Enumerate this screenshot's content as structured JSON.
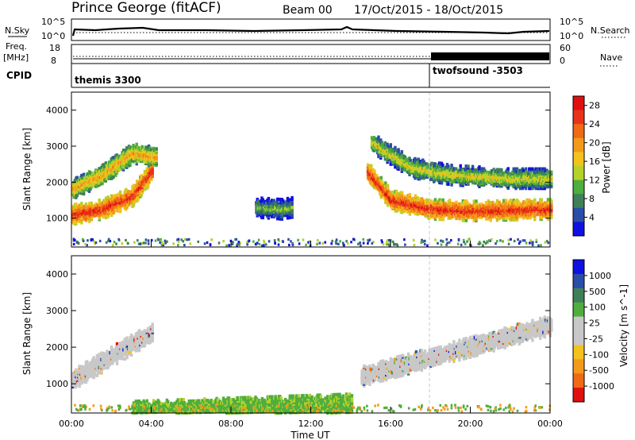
{
  "header": {
    "station": "Prince George (fitACF)",
    "beam": "Beam 00",
    "date_range": "17/Oct/2015 - 18/Oct/2015"
  },
  "top_panels": {
    "nsky_label": "N.Sky",
    "nsky_ticks": [
      "10^5",
      "10^0"
    ],
    "nsearch_label": "N.Search",
    "nsearch_ticks": [
      "10^5",
      "10^0"
    ],
    "freq_label": "Freq.",
    "freq_unit": "[MHz]",
    "freq_ticks": [
      "18",
      "8"
    ],
    "nave_label": "Nave",
    "nave_ticks": [
      "60",
      "0"
    ],
    "cpid_label": "CPID",
    "cpid_entries": [
      {
        "label": "themis 3300",
        "start_hour": 0
      },
      {
        "label": "twofsound -3503",
        "start_hour": 18
      }
    ]
  },
  "colors": {
    "power_scale": [
      "#1010e0",
      "#2a4ea8",
      "#3f7f5a",
      "#4fae3d",
      "#b6d12a",
      "#f2c31c",
      "#f39a1a",
      "#f06a16",
      "#e8331a",
      "#e01010"
    ],
    "velocity_scale": [
      "#e01010",
      "#f06a16",
      "#f39a1a",
      "#f2c31c",
      "#c8c8c8",
      "#c8c8c8",
      "#4fae3d",
      "#3f7f5a",
      "#2a4ea8",
      "#1010e0"
    ]
  },
  "chart_data": [
    {
      "type": "heatmap",
      "name": "Power",
      "xlabel": "",
      "ylabel": "Slant Range [km]",
      "xlim_hours": [
        0,
        24
      ],
      "ylim": [
        200,
        4500
      ],
      "yticks": [
        1000,
        2000,
        3000,
        4000
      ],
      "colorbar": {
        "label": "Power [dB]",
        "ticks": [
          4,
          8,
          12,
          16,
          20,
          24,
          28
        ],
        "range": [
          0,
          30
        ]
      },
      "features": [
        {
          "desc": "dense echo band",
          "x_hours": [
            0.0,
            1.5,
            3.0,
            4.0
          ],
          "range_km": [
            1100,
            1250,
            1600,
            2300
          ],
          "value_db": 28
        },
        {
          "desc": "upper echo band",
          "x_hours": [
            0.0,
            1.5,
            3.0,
            4.2
          ],
          "range_km": [
            1800,
            2200,
            2800,
            2700
          ],
          "value_db": 20
        },
        {
          "desc": "scattered echoes",
          "x_hours": [
            9.2,
            10.5,
            11.0
          ],
          "range_km": [
            1300,
            1250,
            1300
          ],
          "value_db": 12
        },
        {
          "desc": "dense echo band",
          "x_hours": [
            14.8,
            16.0,
            18.0,
            20.0,
            24.0
          ],
          "range_km": [
            2300,
            1500,
            1250,
            1200,
            1250
          ],
          "value_db": 28
        },
        {
          "desc": "upper echo band",
          "x_hours": [
            15.0,
            17.0,
            19.0,
            22.0,
            24.0
          ],
          "range_km": [
            3100,
            2400,
            2200,
            2100,
            2100
          ],
          "value_db": 16
        }
      ]
    },
    {
      "type": "heatmap",
      "name": "Velocity",
      "xlabel": "Time UT",
      "ylabel": "Slant Range [km]",
      "xlim_hours": [
        0,
        24
      ],
      "xticks": [
        "00:00",
        "04:00",
        "08:00",
        "12:00",
        "16:00",
        "20:00",
        "00:00"
      ],
      "ylim": [
        200,
        4500
      ],
      "yticks": [
        1000,
        2000,
        3000,
        4000
      ],
      "colorbar": {
        "label": "Velocity [m s^-1]",
        "ticks": [
          1000,
          500,
          100,
          25,
          -25,
          -100,
          -500,
          -1000
        ]
      },
      "features": [
        {
          "desc": "mostly low velocity",
          "x_hours": [
            0.0,
            4.0
          ],
          "range_km": [
            1100,
            2400
          ],
          "value_ms": 0
        },
        {
          "desc": "low altitude positive",
          "x_hours": [
            3.0,
            14.0
          ],
          "range_km": [
            250,
            450
          ],
          "value_ms": 100
        },
        {
          "desc": "mostly low velocity",
          "x_hours": [
            14.5,
            24.0
          ],
          "range_km": [
            1200,
            2600
          ],
          "value_ms": 0
        }
      ]
    }
  ]
}
